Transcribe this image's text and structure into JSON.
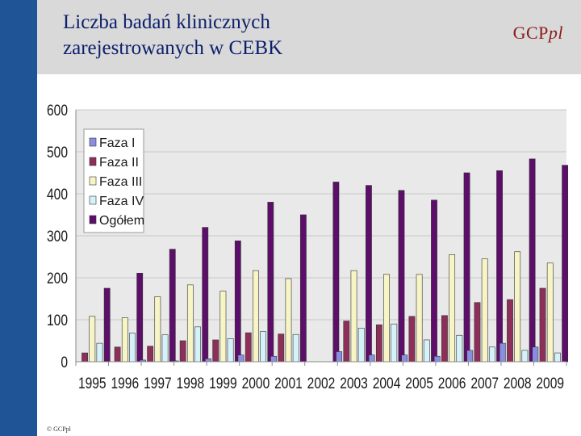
{
  "slide": {
    "title_line1": "Liczba badań klinicznych",
    "title_line2": "zarejestrowanych w CEBK",
    "brand_main": "GCP",
    "brand_suffix": "pl",
    "footer": "© GCPpl",
    "colors": {
      "sidebar": "#1f5597",
      "header_band": "#d9d9d9",
      "title_text": "#0b1f6b",
      "brand_text": "#8b1a1a"
    }
  },
  "chart_data": {
    "type": "bar",
    "title": "",
    "xlabel": "",
    "ylabel": "",
    "ylim": [
      0,
      600
    ],
    "yticks": [
      0,
      100,
      200,
      300,
      400,
      500,
      600
    ],
    "grid": true,
    "legend_position": "top-left",
    "categories": [
      "1995",
      "1996",
      "1997",
      "1998",
      "1999",
      "2000",
      "2001",
      "2002",
      "2003",
      "2004",
      "2005",
      "2006",
      "2007",
      "2008",
      "2009"
    ],
    "series": [
      {
        "name": "Faza I",
        "color": "#8a8ee0",
        "values": [
          0,
          0,
          4,
          2,
          7,
          16,
          13,
          0,
          24,
          16,
          16,
          13,
          27,
          44,
          35
        ]
      },
      {
        "name": "Faza II",
        "color": "#8e2f5a",
        "values": [
          21,
          35,
          37,
          50,
          52,
          69,
          66,
          0,
          97,
          88,
          108,
          110,
          141,
          148,
          175
        ]
      },
      {
        "name": "Faza III",
        "color": "#f7f4c5",
        "values": [
          108,
          105,
          155,
          183,
          168,
          217,
          198,
          0,
          217,
          208,
          208,
          255,
          245,
          262,
          235
        ]
      },
      {
        "name": "Faza IV",
        "color": "#d5f2fa",
        "values": [
          44,
          68,
          64,
          83,
          55,
          72,
          65,
          0,
          80,
          90,
          52,
          63,
          35,
          27,
          21
        ]
      },
      {
        "name": "Ogółem",
        "color": "#5c0e6a",
        "values": [
          175,
          211,
          268,
          320,
          288,
          380,
          350,
          428,
          420,
          408,
          385,
          450,
          455,
          483,
          468
        ]
      }
    ]
  }
}
